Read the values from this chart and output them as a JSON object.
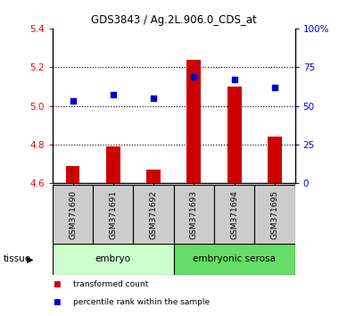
{
  "title": "GDS3843 / Ag.2L.906.0_CDS_at",
  "samples": [
    "GSM371690",
    "GSM371691",
    "GSM371692",
    "GSM371693",
    "GSM371694",
    "GSM371695"
  ],
  "bar_values": [
    4.69,
    4.79,
    4.67,
    5.24,
    5.1,
    4.84
  ],
  "dot_values": [
    53,
    57,
    55,
    69,
    67,
    62
  ],
  "bar_color": "#cc0000",
  "dot_color": "#0000cc",
  "ylim_left": [
    4.6,
    5.4
  ],
  "ylim_right": [
    0,
    100
  ],
  "yticks_left": [
    4.6,
    4.8,
    5.0,
    5.2,
    5.4
  ],
  "yticks_right": [
    0,
    25,
    50,
    75,
    100
  ],
  "ytick_labels_right": [
    "0",
    "25",
    "50",
    "75",
    "100%"
  ],
  "tissue_groups": [
    {
      "label": "embryo",
      "samples": [
        0,
        1,
        2
      ],
      "color": "#ccffcc"
    },
    {
      "label": "embryonic serosa",
      "samples": [
        3,
        4,
        5
      ],
      "color": "#66dd66"
    }
  ],
  "legend_items": [
    {
      "label": "transformed count",
      "color": "#cc0000"
    },
    {
      "label": "percentile rank within the sample",
      "color": "#0000cc"
    }
  ],
  "tissue_label": "tissue",
  "background_color": "#ffffff",
  "grid_color": "#000000",
  "label_box_color": "#cccccc",
  "bar_width": 0.35
}
